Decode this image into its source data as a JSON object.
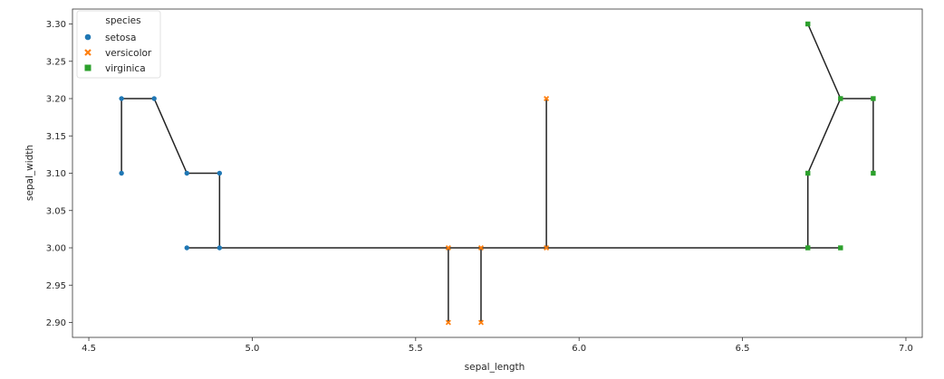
{
  "chart_data": {
    "type": "scatter",
    "xlabel": "sepal_length",
    "ylabel": "sepal_width",
    "xlim": [
      4.45,
      7.05
    ],
    "ylim": [
      2.88,
      3.32
    ],
    "xticks": [
      4.5,
      5.0,
      5.5,
      6.0,
      6.5,
      7.0
    ],
    "xtick_labels": [
      "4.5",
      "5.0",
      "5.5",
      "6.0",
      "6.5",
      "7.0"
    ],
    "yticks": [
      2.9,
      2.95,
      3.0,
      3.05,
      3.1,
      3.15,
      3.2,
      3.25,
      3.3
    ],
    "ytick_labels": [
      "2.90",
      "2.95",
      "3.00",
      "3.05",
      "3.10",
      "3.15",
      "3.20",
      "3.25",
      "3.30"
    ],
    "grid": false,
    "legend": {
      "title": "species",
      "placement": "top-left",
      "entries": [
        "setosa",
        "versicolor",
        "virginica"
      ]
    },
    "series": [
      {
        "name": "setosa",
        "marker": "circle",
        "color": "#1f77b4",
        "points": [
          {
            "x": 4.6,
            "y": 3.1
          },
          {
            "x": 4.6,
            "y": 3.2
          },
          {
            "x": 4.7,
            "y": 3.2
          },
          {
            "x": 4.8,
            "y": 3.1
          },
          {
            "x": 4.9,
            "y": 3.1
          },
          {
            "x": 4.9,
            "y": 3.0
          },
          {
            "x": 4.8,
            "y": 3.0
          }
        ]
      },
      {
        "name": "versicolor",
        "marker": "x",
        "color": "#ff7f0e",
        "points": [
          {
            "x": 5.6,
            "y": 3.0
          },
          {
            "x": 5.6,
            "y": 2.9
          },
          {
            "x": 5.7,
            "y": 3.0
          },
          {
            "x": 5.7,
            "y": 2.9
          },
          {
            "x": 5.9,
            "y": 3.0
          },
          {
            "x": 5.9,
            "y": 3.2
          }
        ]
      },
      {
        "name": "virginica",
        "marker": "square",
        "color": "#2ca02c",
        "points": [
          {
            "x": 6.7,
            "y": 3.3
          },
          {
            "x": 6.8,
            "y": 3.2
          },
          {
            "x": 6.9,
            "y": 3.2
          },
          {
            "x": 6.9,
            "y": 3.1
          },
          {
            "x": 6.7,
            "y": 3.1
          },
          {
            "x": 6.7,
            "y": 3.0
          },
          {
            "x": 6.8,
            "y": 3.0
          }
        ]
      }
    ],
    "line": {
      "color": "#222222",
      "points": [
        {
          "x": 4.6,
          "y": 3.1
        },
        {
          "x": 4.6,
          "y": 3.2
        },
        {
          "x": 4.7,
          "y": 3.2
        },
        {
          "x": 4.8,
          "y": 3.1
        },
        {
          "x": 4.9,
          "y": 3.1
        },
        {
          "x": 4.9,
          "y": 3.0
        },
        {
          "x": 6.7,
          "y": 3.0
        },
        {
          "x": 6.7,
          "y": 3.1
        },
        {
          "x": 6.8,
          "y": 3.2
        },
        {
          "x": 6.7,
          "y": 3.3
        },
        {
          "x": 6.8,
          "y": 3.2
        },
        {
          "x": 6.9,
          "y": 3.2
        },
        {
          "x": 6.9,
          "y": 3.1
        }
      ],
      "extra_segments": [
        [
          {
            "x": 4.8,
            "y": 3.0
          },
          {
            "x": 4.9,
            "y": 3.0
          }
        ],
        [
          {
            "x": 5.6,
            "y": 3.0
          },
          {
            "x": 5.6,
            "y": 2.9
          }
        ],
        [
          {
            "x": 5.7,
            "y": 3.0
          },
          {
            "x": 5.7,
            "y": 2.9
          }
        ],
        [
          {
            "x": 5.9,
            "y": 3.0
          },
          {
            "x": 5.9,
            "y": 3.2
          }
        ],
        [
          {
            "x": 6.7,
            "y": 3.0
          },
          {
            "x": 6.8,
            "y": 3.0
          }
        ]
      ]
    }
  }
}
